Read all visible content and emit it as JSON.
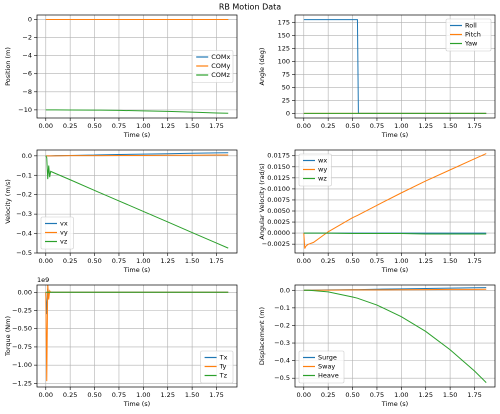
{
  "title": "RB Motion Data",
  "chart_data": [
    {
      "type": "line",
      "ylabel": "Position (m)",
      "xlabel": "Time (s)",
      "grid": true,
      "legend": "center right",
      "x": [
        0,
        0.01,
        0.02,
        0.03,
        0.04,
        0.05,
        0.1,
        0.25,
        0.5,
        0.55,
        0.56,
        0.75,
        1.0,
        1.25,
        1.5,
        1.75,
        1.87
      ],
      "xlim": [
        -0.09,
        1.96
      ],
      "xticks": [
        {
          "value": 0,
          "label": "0.00"
        },
        {
          "value": 0.25,
          "label": "0.25"
        },
        {
          "value": 0.5,
          "label": "0.50"
        },
        {
          "value": 0.75,
          "label": "0.75"
        },
        {
          "value": 1,
          "label": "1.00"
        },
        {
          "value": 1.25,
          "label": "1.25"
        },
        {
          "value": 1.5,
          "label": "1.50"
        },
        {
          "value": 1.75,
          "label": "1.75"
        }
      ],
      "ylim": [
        -10.9,
        0.5
      ],
      "yticks": [
        0,
        {
          "value": -2,
          "label": "−2"
        },
        {
          "value": -4,
          "label": "−4"
        },
        {
          "value": -6,
          "label": "−6"
        },
        {
          "value": -8,
          "label": "−8"
        },
        {
          "value": -10,
          "label": "−10"
        }
      ],
      "series": [
        {
          "name": "COMx",
          "color": "#1f77b4",
          "values": [
            0,
            0,
            0,
            0,
            0,
            0,
            0,
            0,
            0,
            0,
            0,
            0,
            0,
            0,
            0,
            0,
            0
          ]
        },
        {
          "name": "COMy",
          "color": "#ff7f0e",
          "values": [
            0,
            0,
            0,
            0,
            0,
            0,
            0,
            0,
            0,
            0,
            0,
            0,
            0,
            0,
            0,
            0,
            0
          ]
        },
        {
          "name": "COMz",
          "color": "#2ca02c",
          "values": [
            -10,
            -10,
            -10,
            -10,
            -10,
            -10,
            -10,
            -10.01,
            -10.03,
            -10.03,
            -10.03,
            -10.06,
            -10.11,
            -10.17,
            -10.25,
            -10.34,
            -10.38
          ]
        }
      ]
    },
    {
      "type": "line",
      "ylabel": "Angle (deg)",
      "xlabel": "Time (s)",
      "grid": true,
      "legend": "upper right",
      "x": [
        0,
        0.01,
        0.02,
        0.03,
        0.04,
        0.05,
        0.1,
        0.25,
        0.5,
        0.55,
        0.56,
        0.75,
        1.0,
        1.25,
        1.5,
        1.75,
        1.87
      ],
      "xlim": [
        -0.09,
        1.96
      ],
      "xticks": [
        {
          "value": 0,
          "label": "0.00"
        },
        {
          "value": 0.25,
          "label": "0.25"
        },
        {
          "value": 0.5,
          "label": "0.50"
        },
        {
          "value": 0.75,
          "label": "0.75"
        },
        {
          "value": 1,
          "label": "1.00"
        },
        {
          "value": 1.25,
          "label": "1.25"
        },
        {
          "value": 1.5,
          "label": "1.50"
        },
        {
          "value": 1.75,
          "label": "1.75"
        }
      ],
      "ylim": [
        -9,
        189
      ],
      "yticks": [
        0,
        25,
        50,
        75,
        100,
        125,
        150,
        175
      ],
      "series": [
        {
          "name": "Roll",
          "color": "#1f77b4",
          "values": [
            180,
            180,
            180,
            180,
            180,
            180,
            180,
            180,
            180,
            180,
            0,
            0,
            0,
            0,
            0,
            0,
            0
          ]
        },
        {
          "name": "Pitch",
          "color": "#ff7f0e",
          "values": [
            0,
            0,
            0,
            0,
            0,
            0,
            0,
            0,
            0,
            0,
            0,
            0,
            0,
            0,
            0,
            0,
            0
          ]
        },
        {
          "name": "Yaw",
          "color": "#2ca02c",
          "values": [
            0,
            0,
            0,
            0,
            0,
            0,
            0,
            0,
            0,
            0,
            0,
            0,
            0,
            0,
            0,
            0,
            0
          ]
        }
      ]
    },
    {
      "type": "line",
      "ylabel": "Velocity (m/s)",
      "xlabel": "Time (s)",
      "grid": true,
      "legend": "lower left",
      "x": [
        0,
        0.01,
        0.02,
        0.03,
        0.04,
        0.05,
        0.1,
        0.25,
        0.5,
        0.55,
        0.56,
        0.75,
        1.0,
        1.25,
        1.5,
        1.75,
        1.87
      ],
      "xlim": [
        -0.09,
        1.96
      ],
      "xticks": [
        {
          "value": 0,
          "label": "0.00"
        },
        {
          "value": 0.25,
          "label": "0.25"
        },
        {
          "value": 0.5,
          "label": "0.50"
        },
        {
          "value": 0.75,
          "label": "0.75"
        },
        {
          "value": 1,
          "label": "1.00"
        },
        {
          "value": 1.25,
          "label": "1.25"
        },
        {
          "value": 1.5,
          "label": "1.50"
        },
        {
          "value": 1.75,
          "label": "1.75"
        }
      ],
      "ylim": [
        -0.5,
        0.03
      ],
      "yticks": [
        {
          "value": 0,
          "label": "0.0"
        },
        {
          "value": -0.1,
          "label": "−0.1"
        },
        {
          "value": -0.2,
          "label": "−0.2"
        },
        {
          "value": -0.3,
          "label": "−0.3"
        },
        {
          "value": -0.4,
          "label": "−0.4"
        },
        {
          "value": -0.5,
          "label": "−0.5"
        }
      ],
      "series": [
        {
          "name": "vx",
          "color": "#1f77b4",
          "values": [
            0,
            0,
            0,
            0,
            0,
            0,
            0.001,
            0.002,
            0.004,
            0.005,
            0.005,
            0.007,
            0.009,
            0.011,
            0.013,
            0.015,
            0.016
          ]
        },
        {
          "name": "vy",
          "color": "#ff7f0e",
          "values": [
            0,
            0,
            0,
            0,
            0,
            0,
            0,
            0.001,
            0.001,
            0.001,
            0.001,
            0.002,
            0.002,
            0.003,
            0.003,
            0.004,
            0.004
          ]
        },
        {
          "name": "vz",
          "color": "#2ca02c",
          "values": [
            0,
            -0.01,
            -0.12,
            -0.05,
            -0.11,
            -0.08,
            -0.091,
            -0.123,
            -0.178,
            -0.189,
            -0.191,
            -0.232,
            -0.286,
            -0.34,
            -0.395,
            -0.449,
            -0.475
          ]
        }
      ]
    },
    {
      "type": "line",
      "ylabel": "Angular Velocity (rad/s)",
      "xlabel": "Time (s)",
      "grid": true,
      "legend": "upper left",
      "x": [
        0,
        0.01,
        0.02,
        0.03,
        0.04,
        0.05,
        0.1,
        0.25,
        0.5,
        0.55,
        0.56,
        0.75,
        1.0,
        1.25,
        1.5,
        1.75,
        1.87
      ],
      "xlim": [
        -0.09,
        1.96
      ],
      "xticks": [
        {
          "value": 0,
          "label": "0.00"
        },
        {
          "value": 0.25,
          "label": "0.25"
        },
        {
          "value": 0.5,
          "label": "0.50"
        },
        {
          "value": 0.75,
          "label": "0.75"
        },
        {
          "value": 1,
          "label": "1.00"
        },
        {
          "value": 1.25,
          "label": "1.25"
        },
        {
          "value": 1.5,
          "label": "1.50"
        },
        {
          "value": 1.75,
          "label": "1.75"
        }
      ],
      "ylim": [
        -0.0045,
        0.0188
      ],
      "yticks": [
        {
          "value": -0.0025,
          "label": "−0.0025"
        },
        {
          "value": 0,
          "label": "0.0000"
        },
        {
          "value": 0.0025,
          "label": "0.0025"
        },
        {
          "value": 0.005,
          "label": "0.0050"
        },
        {
          "value": 0.0075,
          "label": "0.0075"
        },
        {
          "value": 0.01,
          "label": "0.0100"
        },
        {
          "value": 0.0125,
          "label": "0.0125"
        },
        {
          "value": 0.015,
          "label": "0.0150"
        },
        {
          "value": 0.0175,
          "label": "0.0175"
        }
      ],
      "series": [
        {
          "name": "wx",
          "color": "#1f77b4",
          "values": [
            0,
            0,
            0,
            0,
            0,
            0,
            0,
            0,
            0,
            0,
            0,
            0,
            0,
            0,
            0,
            0,
            0
          ]
        },
        {
          "name": "wy",
          "color": "#ff7f0e",
          "values": [
            0,
            -0.0035,
            -0.003,
            -0.0028,
            -0.0026,
            -0.0025,
            -0.0021,
            0.0003,
            0.0035,
            0.004,
            0.0041,
            0.0063,
            0.0091,
            0.0118,
            0.0143,
            0.0168,
            0.018
          ]
        },
        {
          "name": "wz",
          "color": "#2ca02c",
          "values": [
            0,
            0,
            0,
            0,
            0,
            0,
            0,
            0,
            -0.0001,
            -0.0001,
            -0.0001,
            -0.0001,
            -0.0001,
            -0.0002,
            -0.0002,
            -0.0002,
            -0.0002
          ]
        }
      ]
    },
    {
      "type": "line",
      "ylabel": "Torque (Nm)",
      "xlabel": "Time (s)",
      "offset_label": "1e9",
      "grid": true,
      "legend": "lower right",
      "x": [
        0,
        0.01,
        0.02,
        0.03,
        0.04,
        0.05,
        0.1,
        0.25,
        0.5,
        0.55,
        0.56,
        0.75,
        1.0,
        1.25,
        1.5,
        1.75,
        1.87
      ],
      "xlim": [
        -0.09,
        1.96
      ],
      "xticks": [
        {
          "value": 0,
          "label": "0.00"
        },
        {
          "value": 0.25,
          "label": "0.25"
        },
        {
          "value": 0.5,
          "label": "0.50"
        },
        {
          "value": 0.75,
          "label": "0.75"
        },
        {
          "value": 1,
          "label": "1.00"
        },
        {
          "value": 1.25,
          "label": "1.25"
        },
        {
          "value": 1.5,
          "label": "1.50"
        },
        {
          "value": 1.75,
          "label": "1.75"
        }
      ],
      "ylim": [
        -1.3,
        0.1
      ],
      "yticks": [
        {
          "value": 0,
          "label": "0.00"
        },
        {
          "value": -0.25,
          "label": "−0.25"
        },
        {
          "value": -0.5,
          "label": "−0.50"
        },
        {
          "value": -0.75,
          "label": "−0.75"
        },
        {
          "value": -1,
          "label": "−1.00"
        },
        {
          "value": -1.25,
          "label": "−1.25"
        }
      ],
      "series": [
        {
          "name": "Tx",
          "color": "#1f77b4",
          "values": [
            0,
            -0.3,
            0.05,
            -0.02,
            0,
            0,
            0,
            0,
            0,
            0,
            0,
            0,
            0,
            0,
            0,
            0,
            0
          ]
        },
        {
          "name": "Ty",
          "color": "#ff7f0e",
          "values": [
            0,
            -1.22,
            0.12,
            -0.1,
            0.02,
            0,
            0,
            0,
            0,
            0,
            0,
            0,
            0,
            0,
            0,
            0,
            0
          ]
        },
        {
          "name": "Tz",
          "color": "#2ca02c",
          "values": [
            0,
            0,
            0,
            0,
            0,
            0,
            0,
            0,
            0,
            0,
            0,
            0,
            0,
            0,
            0,
            0,
            0
          ]
        }
      ]
    },
    {
      "type": "line",
      "ylabel": "Displacement (m)",
      "xlabel": "Time (s)",
      "grid": true,
      "legend": "lower left",
      "x": [
        0,
        0.01,
        0.02,
        0.03,
        0.04,
        0.05,
        0.1,
        0.25,
        0.5,
        0.55,
        0.56,
        0.75,
        1.0,
        1.25,
        1.5,
        1.75,
        1.87
      ],
      "xlim": [
        -0.09,
        1.96
      ],
      "xticks": [
        {
          "value": 0,
          "label": "0.00"
        },
        {
          "value": 0.25,
          "label": "0.25"
        },
        {
          "value": 0.5,
          "label": "0.50"
        },
        {
          "value": 0.75,
          "label": "0.75"
        },
        {
          "value": 1,
          "label": "1.00"
        },
        {
          "value": 1.25,
          "label": "1.25"
        },
        {
          "value": 1.5,
          "label": "1.50"
        },
        {
          "value": 1.75,
          "label": "1.75"
        }
      ],
      "ylim": [
        -0.55,
        0.03
      ],
      "yticks": [
        {
          "value": 0,
          "label": "0.0"
        },
        {
          "value": -0.1,
          "label": "−0.1"
        },
        {
          "value": -0.2,
          "label": "−0.2"
        },
        {
          "value": -0.3,
          "label": "−0.3"
        },
        {
          "value": -0.4,
          "label": "−0.4"
        },
        {
          "value": -0.5,
          "label": "−0.5"
        }
      ],
      "series": [
        {
          "name": "Surge",
          "color": "#1f77b4",
          "values": [
            0,
            0,
            0,
            0,
            0,
            0,
            0.001,
            0.002,
            0.004,
            0.004,
            0.004,
            0.006,
            0.008,
            0.01,
            0.012,
            0.014,
            0.015
          ]
        },
        {
          "name": "Sway",
          "color": "#ff7f0e",
          "values": [
            0,
            0,
            0,
            0,
            0,
            0,
            0,
            0.001,
            0.002,
            0.002,
            0.002,
            0.002,
            0.003,
            0.004,
            0.005,
            0.005,
            0.006
          ]
        },
        {
          "name": "Heave",
          "color": "#2ca02c",
          "values": [
            0,
            0,
            0,
            0,
            0,
            0,
            -0.002,
            -0.009,
            -0.038,
            -0.045,
            -0.047,
            -0.084,
            -0.15,
            -0.234,
            -0.338,
            -0.459,
            -0.525
          ]
        }
      ]
    }
  ]
}
